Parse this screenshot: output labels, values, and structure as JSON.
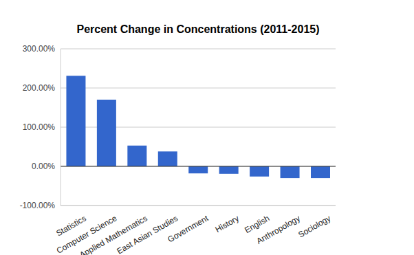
{
  "chart_data": {
    "type": "bar",
    "title": "Percent Change in Concentrations (2011-2015)",
    "categories": [
      "Statistics",
      "Computer Science",
      "Applied Mathematics",
      "East Asian Studies",
      "Government",
      "History",
      "English",
      "Anthropology",
      "Sociology"
    ],
    "values": [
      231,
      170,
      53,
      38,
      -18,
      -19,
      -26,
      -30,
      -30
    ],
    "color": "#3366cc",
    "ylim": [
      -100,
      300
    ],
    "yticks": [
      {
        "value": -100,
        "label": "-100.00%"
      },
      {
        "value": 0,
        "label": "0.00%"
      },
      {
        "value": 100,
        "label": "100.00%"
      },
      {
        "value": 200,
        "label": "200.00%"
      },
      {
        "value": 300,
        "label": "300.00%"
      }
    ],
    "grid": true
  }
}
